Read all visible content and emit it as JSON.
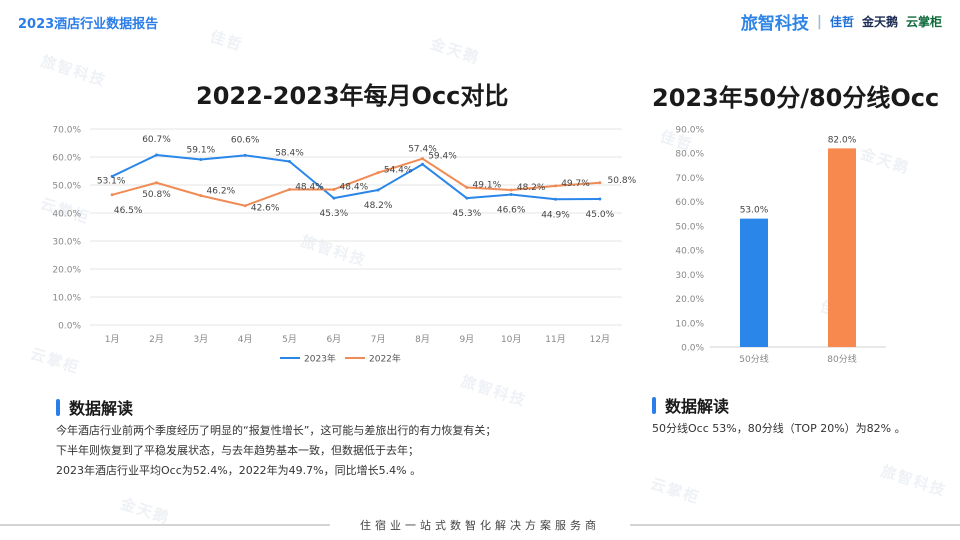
{
  "header": {
    "title": "2023酒店行业数据报告",
    "logos": [
      "旅智科技",
      "佳哲",
      "金天鹅",
      "云掌柜"
    ],
    "logo_separator": "|"
  },
  "watermarks": [
    "旅智科技",
    "佳哲",
    "金天鹅",
    "云掌柜"
  ],
  "chart_data": [
    {
      "type": "line",
      "title": "2022-2023年每月Occ对比",
      "categories": [
        "1月",
        "2月",
        "3月",
        "4月",
        "5月",
        "6月",
        "7月",
        "8月",
        "9月",
        "10月",
        "11月",
        "12月"
      ],
      "series": [
        {
          "name": "2023年",
          "color": "#2a86e8",
          "values": [
            53.1,
            60.7,
            59.1,
            60.6,
            58.4,
            45.3,
            48.2,
            57.4,
            45.3,
            46.6,
            44.9,
            45.0
          ],
          "labels": [
            "53.1%",
            "60.7%",
            "59.1%",
            "60.6%",
            "58.4%",
            "45.3%",
            "48.2%",
            "57.4%",
            "45.3%",
            "46.6%",
            "44.9%",
            "45.0%"
          ]
        },
        {
          "name": "2022年",
          "color": "#f08b55",
          "values": [
            46.5,
            50.8,
            46.2,
            42.6,
            48.4,
            48.4,
            54.4,
            59.4,
            49.1,
            48.2,
            49.7,
            50.8
          ],
          "labels": [
            "46.5%",
            "50.8%",
            "46.2%",
            "42.6%",
            "48.4%",
            "48.4%",
            "54.4%",
            "59.4%",
            "49.1%",
            "48.2%",
            "49.7%",
            "50.8%"
          ]
        }
      ],
      "ylim": [
        0,
        70
      ],
      "yticks": [
        "0.0%",
        "10.0%",
        "20.0%",
        "30.0%",
        "40.0%",
        "50.0%",
        "60.0%",
        "70.0%"
      ],
      "grid": true,
      "legend": "bottom"
    },
    {
      "type": "bar",
      "title": "2023年50分/80分线Occ",
      "categories": [
        "50分线",
        "80分线"
      ],
      "values": [
        53.0,
        82.0
      ],
      "labels": [
        "53.0%",
        "82.0%"
      ],
      "colors": [
        "#2a86e8",
        "#f7894f"
      ],
      "ylim": [
        0,
        90
      ],
      "yticks": [
        "0.0%",
        "10.0%",
        "20.0%",
        "30.0%",
        "40.0%",
        "50.0%",
        "60.0%",
        "70.0%",
        "80.0%",
        "90.0%"
      ],
      "grid": false
    }
  ],
  "analysis_left": {
    "heading": "数据解读",
    "lines": [
      "今年酒店行业前两个季度经历了明显的“报复性增长”，这可能与差旅出行的有力恢复有关；",
      "下半年则恢复到了平稳发展状态，与去年趋势基本一致，但数据低于去年；",
      "2023年酒店行业平均Occ为52.4%，2022年为49.7%，同比增长5.4% 。"
    ]
  },
  "analysis_right": {
    "heading": "数据解读",
    "lines": [
      "50分线Occ 53%，80分线（TOP 20%）为82% 。"
    ]
  },
  "footer": {
    "slogan": "住宿业一站式数智化解决方案服务商"
  }
}
